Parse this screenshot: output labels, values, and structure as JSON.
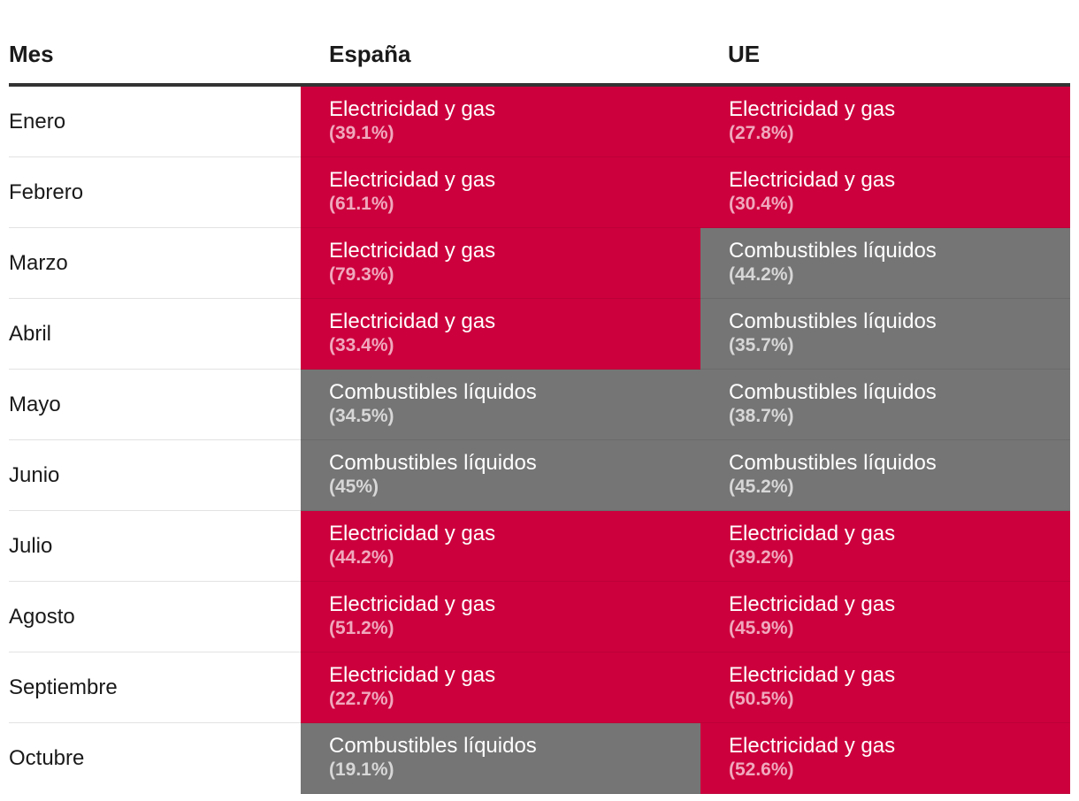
{
  "colors": {
    "electricidad": "#cc003d",
    "combustibles": "#757575"
  },
  "chart_data": {
    "type": "table",
    "columns": [
      "Mes",
      "España",
      "UE"
    ],
    "rows": [
      {
        "mes": "Enero",
        "es": {
          "label": "Electricidad y gas",
          "pct": "(39.1%)",
          "value": 39.1
        },
        "ue": {
          "label": "Electricidad y gas",
          "pct": "(27.8%)",
          "value": 27.8
        }
      },
      {
        "mes": "Febrero",
        "es": {
          "label": "Electricidad y gas",
          "pct": "(61.1%)",
          "value": 61.1
        },
        "ue": {
          "label": "Electricidad y gas",
          "pct": "(30.4%)",
          "value": 30.4
        }
      },
      {
        "mes": "Marzo",
        "es": {
          "label": "Electricidad y gas",
          "pct": "(79.3%)",
          "value": 79.3
        },
        "ue": {
          "label": "Combustibles líquidos",
          "pct": "(44.2%)",
          "value": 44.2
        }
      },
      {
        "mes": "Abril",
        "es": {
          "label": "Electricidad y gas",
          "pct": "(33.4%)",
          "value": 33.4
        },
        "ue": {
          "label": "Combustibles líquidos",
          "pct": "(35.7%)",
          "value": 35.7
        }
      },
      {
        "mes": "Mayo",
        "es": {
          "label": "Combustibles líquidos",
          "pct": "(34.5%)",
          "value": 34.5
        },
        "ue": {
          "label": "Combustibles líquidos",
          "pct": "(38.7%)",
          "value": 38.7
        }
      },
      {
        "mes": "Junio",
        "es": {
          "label": "Combustibles líquidos",
          "pct": "(45%)",
          "value": 45
        },
        "ue": {
          "label": "Combustibles líquidos",
          "pct": "(45.2%)",
          "value": 45.2
        }
      },
      {
        "mes": "Julio",
        "es": {
          "label": "Electricidad y gas",
          "pct": "(44.2%)",
          "value": 44.2
        },
        "ue": {
          "label": "Electricidad y gas",
          "pct": "(39.2%)",
          "value": 39.2
        }
      },
      {
        "mes": "Agosto",
        "es": {
          "label": "Electricidad y gas",
          "pct": "(51.2%)",
          "value": 51.2
        },
        "ue": {
          "label": "Electricidad y gas",
          "pct": "(45.9%)",
          "value": 45.9
        }
      },
      {
        "mes": "Septiembre",
        "es": {
          "label": "Electricidad y gas",
          "pct": "(22.7%)",
          "value": 22.7
        },
        "ue": {
          "label": "Electricidad y gas",
          "pct": "(50.5%)",
          "value": 50.5
        }
      },
      {
        "mes": "Octubre",
        "es": {
          "label": "Combustibles líquidos",
          "pct": "(19.1%)",
          "value": 19.1
        },
        "ue": {
          "label": "Electricidad y gas",
          "pct": "(52.6%)",
          "value": 52.6
        }
      }
    ]
  }
}
